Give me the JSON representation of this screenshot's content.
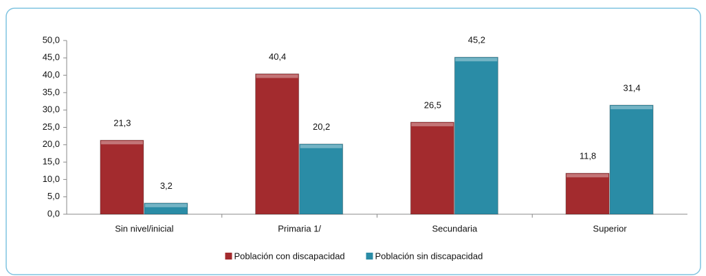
{
  "chart_data": {
    "type": "bar",
    "categories": [
      "Sin nivel/inicial",
      "Primaria 1/",
      "Secundaria",
      "Superior"
    ],
    "series": [
      {
        "name": "Población con discapacidad",
        "color": "#a32b2e",
        "values": [
          21.3,
          40.4,
          26.5,
          11.8
        ],
        "value_labels": [
          "21,3",
          "40,4",
          "26,5",
          "11,8"
        ]
      },
      {
        "name": "Población sin discapacidad",
        "color": "#2a8ca6",
        "values": [
          3.2,
          20.2,
          45.2,
          31.4
        ],
        "value_labels": [
          "3,2",
          "20,2",
          "45,2",
          "31,4"
        ]
      }
    ],
    "ylim": [
      0,
      50
    ],
    "yticks": [
      {
        "value": 0,
        "label": "0,0"
      },
      {
        "value": 5,
        "label": "5,0"
      },
      {
        "value": 10,
        "label": "10,0"
      },
      {
        "value": 15,
        "label": "15,0"
      },
      {
        "value": 20,
        "label": "20,0"
      },
      {
        "value": 25,
        "label": "25,0"
      },
      {
        "value": 30,
        "label": "30,0"
      },
      {
        "value": 35,
        "label": "35,0"
      },
      {
        "value": 40,
        "label": "40,0"
      },
      {
        "value": 45,
        "label": "45,0"
      },
      {
        "value": 50,
        "label": "50,0"
      }
    ],
    "legend": "bottom"
  }
}
